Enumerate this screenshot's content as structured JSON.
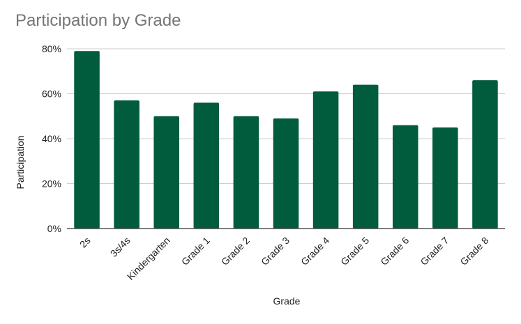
{
  "chart_data": {
    "type": "bar",
    "title": "Participation by Grade",
    "xlabel": "Grade",
    "ylabel": "Participation",
    "categories": [
      "2s",
      "3s/4s",
      "Kindergarten",
      "Grade 1",
      "Grade 2",
      "Grade 3",
      "Grade 4",
      "Grade 5",
      "Grade 6",
      "Grade 7",
      "Grade 8"
    ],
    "values": [
      0.79,
      0.57,
      0.5,
      0.56,
      0.5,
      0.49,
      0.61,
      0.64,
      0.46,
      0.45,
      0.66
    ],
    "ylim": [
      0,
      0.8
    ],
    "yticks": [
      0,
      0.2,
      0.4,
      0.6,
      0.8
    ],
    "ytick_labels": [
      "0%",
      "20%",
      "40%",
      "60%",
      "80%"
    ],
    "grid": true,
    "legend": "none",
    "colors": {
      "bar": "#005c3d",
      "grid": "#cccccc",
      "axis": "#333333",
      "title": "#757575",
      "text": "#222222"
    }
  }
}
